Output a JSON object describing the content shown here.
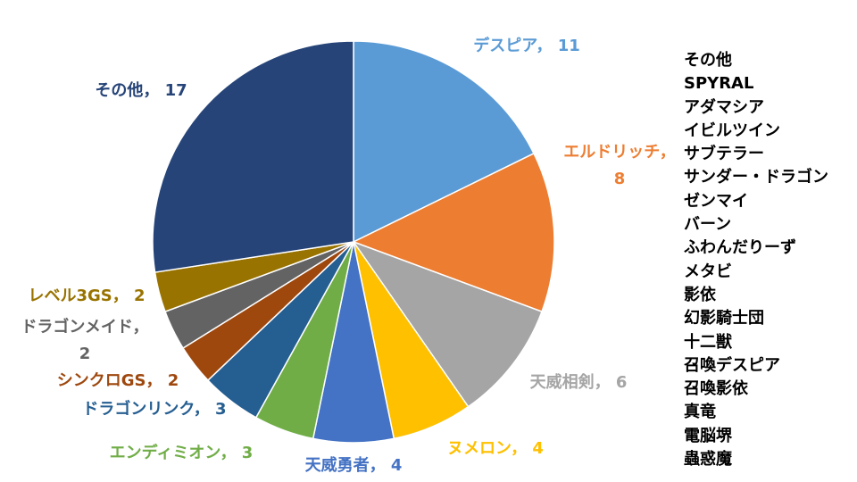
{
  "chart_data": {
    "type": "pie",
    "title": "",
    "slices": [
      {
        "label": "デスピア",
        "value": 11,
        "color": "#5b9bd5"
      },
      {
        "label": "エルドリッチ",
        "value": 8,
        "color": "#ed7d31"
      },
      {
        "label": "天威相剣",
        "value": 6,
        "color": "#a5a5a5"
      },
      {
        "label": "ヌメロン",
        "value": 4,
        "color": "#ffc000"
      },
      {
        "label": "天威勇者",
        "value": 4,
        "color": "#4472c4"
      },
      {
        "label": "エンディミオン",
        "value": 3,
        "color": "#70ad47"
      },
      {
        "label": "ドラゴンリンク",
        "value": 3,
        "color": "#255e91"
      },
      {
        "label": "シンクロGS",
        "value": 2,
        "color": "#9e480e"
      },
      {
        "label": "ドラゴンメイド",
        "value": 2,
        "color": "#636363"
      },
      {
        "label": "レベル3GS",
        "value": 2,
        "color": "#997300"
      },
      {
        "label": "その他",
        "value": 17,
        "color": "#264478"
      }
    ],
    "label_separator": "，",
    "side_list": [
      "その他",
      "SPYRAL",
      "アダマシア",
      "イビルツイン",
      "サブテラー",
      "サンダー・ドラゴン",
      "ゼンマイ",
      "バーン",
      "ふわんだりーず",
      "メタビ",
      "影依",
      "幻影騎士団",
      "十二獣",
      "召喚デスピア",
      "召喚影依",
      "真竜",
      "電脳堺",
      "蟲惑魔"
    ]
  }
}
